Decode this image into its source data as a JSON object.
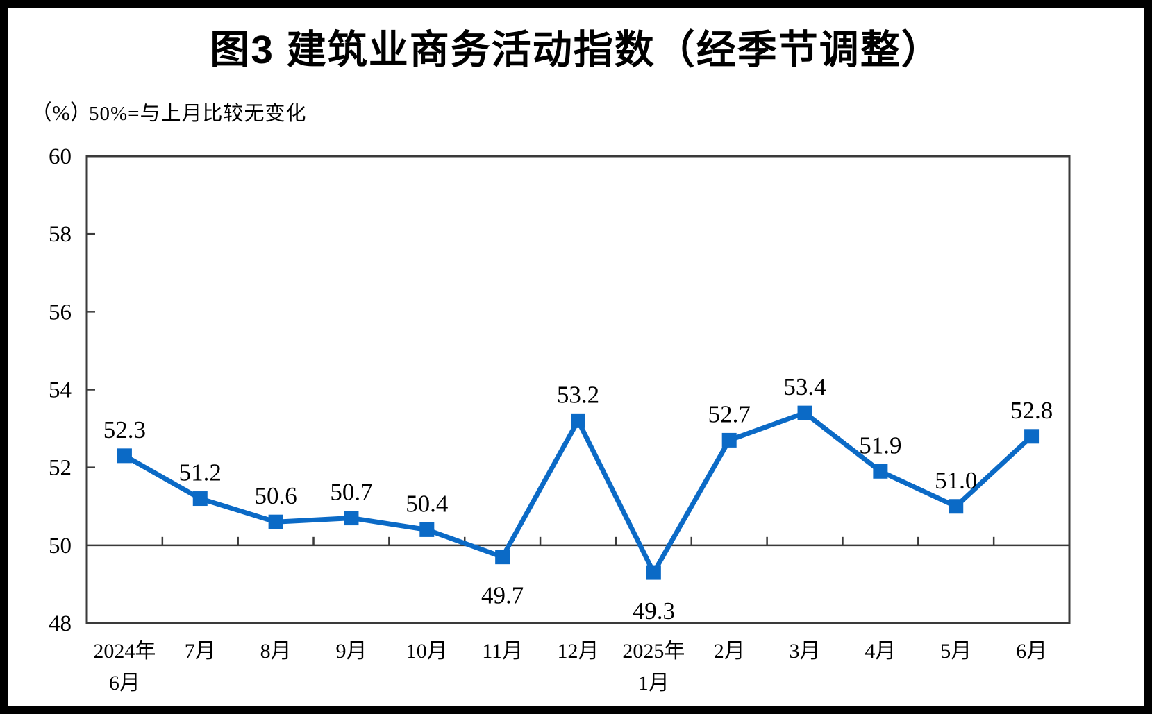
{
  "chart_data": {
    "type": "line",
    "title": "图3 建筑业商务活动指数（经季节调整）",
    "unit_label": "（%）",
    "note": "50%=与上月比较无变化",
    "categories": [
      [
        "2024年",
        "6月"
      ],
      [
        "7月"
      ],
      [
        "8月"
      ],
      [
        "9月"
      ],
      [
        "10月"
      ],
      [
        "11月"
      ],
      [
        "12月"
      ],
      [
        "2025年",
        "1月"
      ],
      [
        "2月"
      ],
      [
        "3月"
      ],
      [
        "4月"
      ],
      [
        "5月"
      ],
      [
        "6月"
      ]
    ],
    "values": [
      52.3,
      51.2,
      50.6,
      50.7,
      50.4,
      49.7,
      53.2,
      49.3,
      52.7,
      53.4,
      51.9,
      51.0,
      52.8
    ],
    "labels_below_indices": [
      5,
      7
    ],
    "ylim": [
      48,
      60
    ],
    "ytick_step": 2,
    "reference_line": 50,
    "grid": "off",
    "legend": "none",
    "line_color": "#0b6ac6",
    "axis_color": "#3a3a3a",
    "text_color": "#000000",
    "frame_color": "#000000"
  }
}
